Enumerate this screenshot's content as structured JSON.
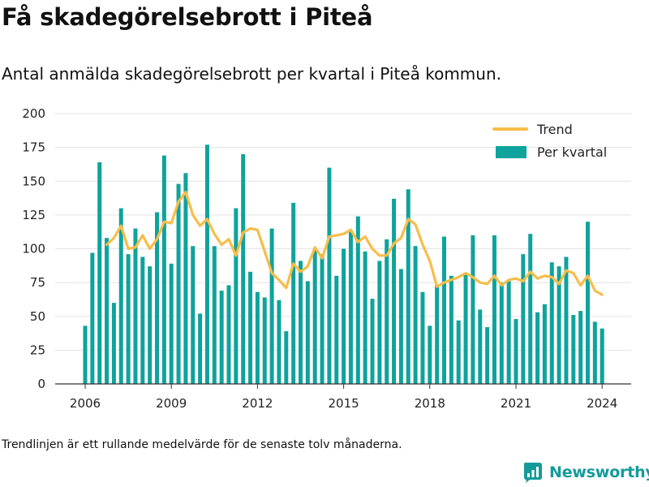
{
  "header": {
    "title": "Få skadegörelsebrott i Piteå",
    "subtitle": "Antal anmälda skadegörelsebrott per kvartal i Piteå kommun."
  },
  "footer": {
    "note": "Trendlinjen är ett rullande medelvärde för de senaste tolv månaderna.",
    "brand": "Newsworthy"
  },
  "colors": {
    "bar": "#0ea39c",
    "trend": "#f7bd4a",
    "grid": "#e3e3e3",
    "axis": "#333333",
    "brand": "#139b9b"
  },
  "chart_data": {
    "type": "bar",
    "title": "",
    "xlabel": "",
    "ylabel": "",
    "ylim": [
      0,
      200
    ],
    "y_ticks": [
      "0",
      "25",
      "50",
      "75",
      "100",
      "125",
      "150",
      "175",
      "200"
    ],
    "x_ticks": [
      "2006",
      "2009",
      "2012",
      "2015",
      "2018",
      "2021",
      "2024"
    ],
    "legend": {
      "placement": "top-right",
      "entries": [
        "Trend",
        "Per kvartal"
      ]
    },
    "grid": true,
    "x_start": "2006 Q1",
    "series": [
      {
        "name": "Per kvartal",
        "type": "bar",
        "values": [
          43,
          97,
          164,
          108,
          60,
          130,
          96,
          115,
          94,
          87,
          127,
          169,
          89,
          148,
          156,
          102,
          52,
          177,
          102,
          69,
          73,
          130,
          170,
          83,
          68,
          64,
          115,
          62,
          39,
          134,
          91,
          76,
          100,
          96,
          160,
          80,
          100,
          113,
          124,
          98,
          63,
          91,
          107,
          137,
          85,
          144,
          102,
          68,
          43,
          73,
          109,
          80,
          47,
          82,
          110,
          55,
          42,
          110,
          75,
          76,
          48,
          96,
          111,
          53,
          59,
          90,
          87,
          94,
          51,
          54,
          120,
          46,
          41
        ]
      },
      {
        "name": "Trend",
        "type": "line",
        "values": [
          null,
          null,
          null,
          103,
          108,
          117,
          100,
          101,
          110,
          100,
          107,
          120,
          119,
          135,
          142,
          125,
          117,
          122,
          111,
          103,
          107,
          95,
          112,
          115,
          114,
          98,
          82,
          77,
          71,
          89,
          83,
          87,
          101,
          93,
          109,
          110,
          111,
          114,
          105,
          109,
          100,
          95,
          95,
          104,
          108,
          122,
          118,
          103,
          91,
          72,
          75,
          77,
          79,
          82,
          79,
          75,
          74,
          80,
          73,
          77,
          78,
          76,
          83,
          78,
          80,
          79,
          74,
          84,
          82,
          73,
          80,
          69,
          66
        ]
      }
    ]
  }
}
